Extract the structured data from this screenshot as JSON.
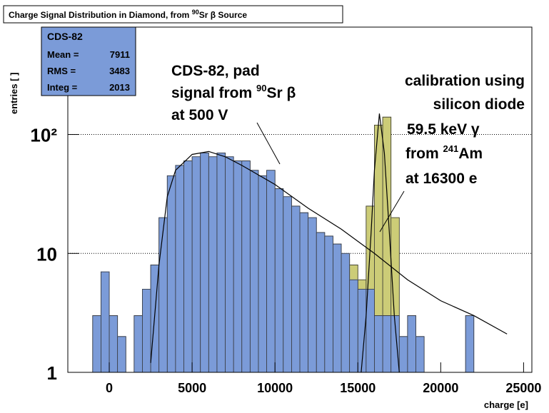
{
  "chart_data": {
    "type": "histogram",
    "title": [
      "Charge Signal Distribution in Diamond, from ",
      "90",
      "Sr β Source"
    ],
    "x_label": "charge [e]",
    "y_label": "entries [ ]",
    "log_y": true,
    "grid": true,
    "xlim": [
      -2500,
      25500
    ],
    "ylim": [
      1,
      800
    ],
    "xticks": [
      0,
      5000,
      10000,
      15000,
      20000,
      25000
    ],
    "yticks": [
      1,
      10,
      {
        "value": 100,
        "label": "10²"
      }
    ],
    "stats": {
      "name": "CDS-82",
      "rows": [
        [
          "Mean =",
          "7911"
        ],
        [
          "RMS =",
          "3483"
        ],
        [
          "Integ =",
          "2013"
        ]
      ]
    },
    "annotations": [
      {
        "lines": [
          [
            "CDS-82, pad"
          ],
          [
            "signal from ",
            "90",
            "Sr β"
          ],
          [
            "at 500 V"
          ]
        ]
      },
      {
        "lines": [
          [
            "calibration using"
          ],
          [
            "silicon diode"
          ],
          [
            "59.5 keV γ"
          ],
          [
            "from ",
            "241",
            "Am"
          ],
          [
            "at 16300 e"
          ]
        ]
      }
    ],
    "series": [
      {
        "name": "calibration",
        "color": "#cccc77",
        "bins": [
          13000,
          13500,
          14000,
          14500,
          15000,
          15500,
          16000,
          16500,
          17000,
          17500
        ],
        "values": [
          8,
          7,
          9,
          8,
          6,
          25,
          120,
          140,
          20
        ]
      },
      {
        "name": "CDS-82",
        "color": "#7b9bd8",
        "bins": [
          -1000,
          -500,
          0,
          500,
          1000,
          1500,
          2000,
          2500,
          3000,
          3500,
          4000,
          4500,
          5000,
          5500,
          6000,
          6500,
          7000,
          7500,
          8000,
          8500,
          9000,
          9500,
          10000,
          10500,
          11000,
          11500,
          12000,
          12500,
          13000,
          13500,
          14000,
          14500,
          15000,
          15500,
          16000,
          16500,
          17000,
          17500,
          18000,
          18500,
          19000,
          19500,
          20000,
          20500,
          21000,
          21500,
          22000
        ],
        "values": [
          3,
          7,
          3,
          2,
          null,
          3,
          5,
          8,
          20,
          45,
          55,
          60,
          65,
          70,
          65,
          70,
          65,
          60,
          60,
          50,
          45,
          50,
          35,
          30,
          25,
          22,
          20,
          15,
          14,
          12,
          10,
          6,
          5,
          5,
          3,
          3,
          3,
          2,
          3,
          2,
          null,
          null,
          null,
          null,
          null,
          3
        ]
      }
    ],
    "fits": [
      {
        "x": [
          2500,
          3000,
          3500,
          4000,
          5000,
          6000,
          7000,
          8000,
          10000,
          12000,
          14000,
          16000,
          18000,
          20000,
          22000,
          24000
        ],
        "values": [
          1.2,
          8,
          30,
          50,
          68,
          72,
          65,
          55,
          38,
          24,
          16,
          10,
          6,
          4,
          3,
          2.1
        ]
      },
      {
        "x": [
          15200,
          15500,
          15800,
          16000,
          16300,
          16600,
          16900,
          17200,
          17500
        ],
        "values": [
          1,
          3,
          15,
          50,
          150,
          70,
          15,
          3,
          1
        ]
      }
    ]
  }
}
